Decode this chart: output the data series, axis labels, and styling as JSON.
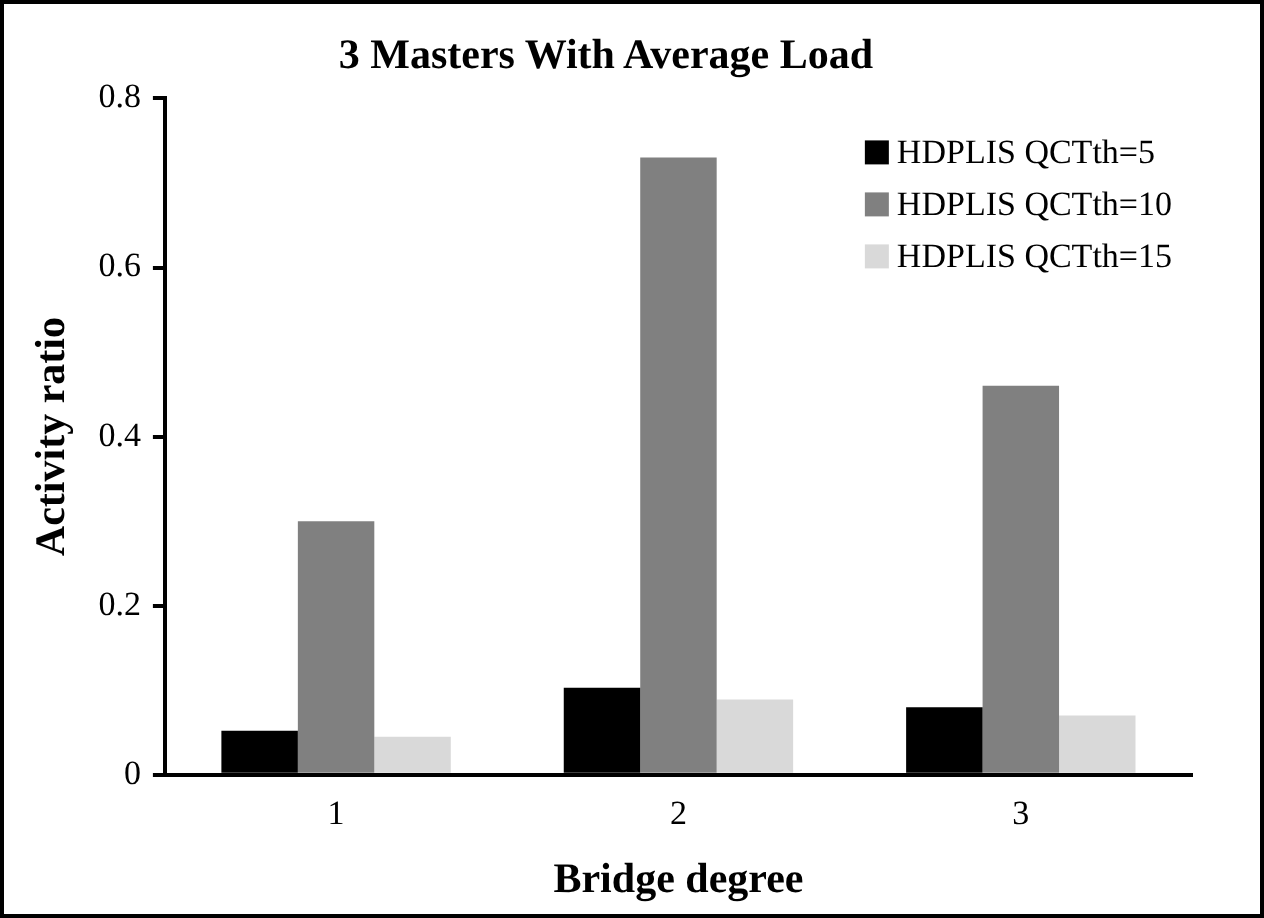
{
  "chart_data": {
    "type": "bar",
    "title": "3 Masters With Average Load",
    "xlabel": "Bridge degree",
    "ylabel": "Activity ratio",
    "categories": [
      "1",
      "2",
      "3"
    ],
    "series": [
      {
        "name": "HDPLIS QCTth=5",
        "color": "#000000",
        "values": [
          0.052,
          0.103,
          0.08
        ]
      },
      {
        "name": "HDPLIS QCTth=10",
        "color": "#808080",
        "values": [
          0.3,
          0.73,
          0.46
        ]
      },
      {
        "name": "HDPLIS QCTth=15",
        "color": "#d9d9d9",
        "values": [
          0.045,
          0.089,
          0.07
        ]
      }
    ],
    "ylim": [
      0,
      0.8
    ],
    "yticks": [
      0,
      0.2,
      0.4,
      0.6,
      0.8
    ],
    "grid": false,
    "legend": "top right"
  }
}
